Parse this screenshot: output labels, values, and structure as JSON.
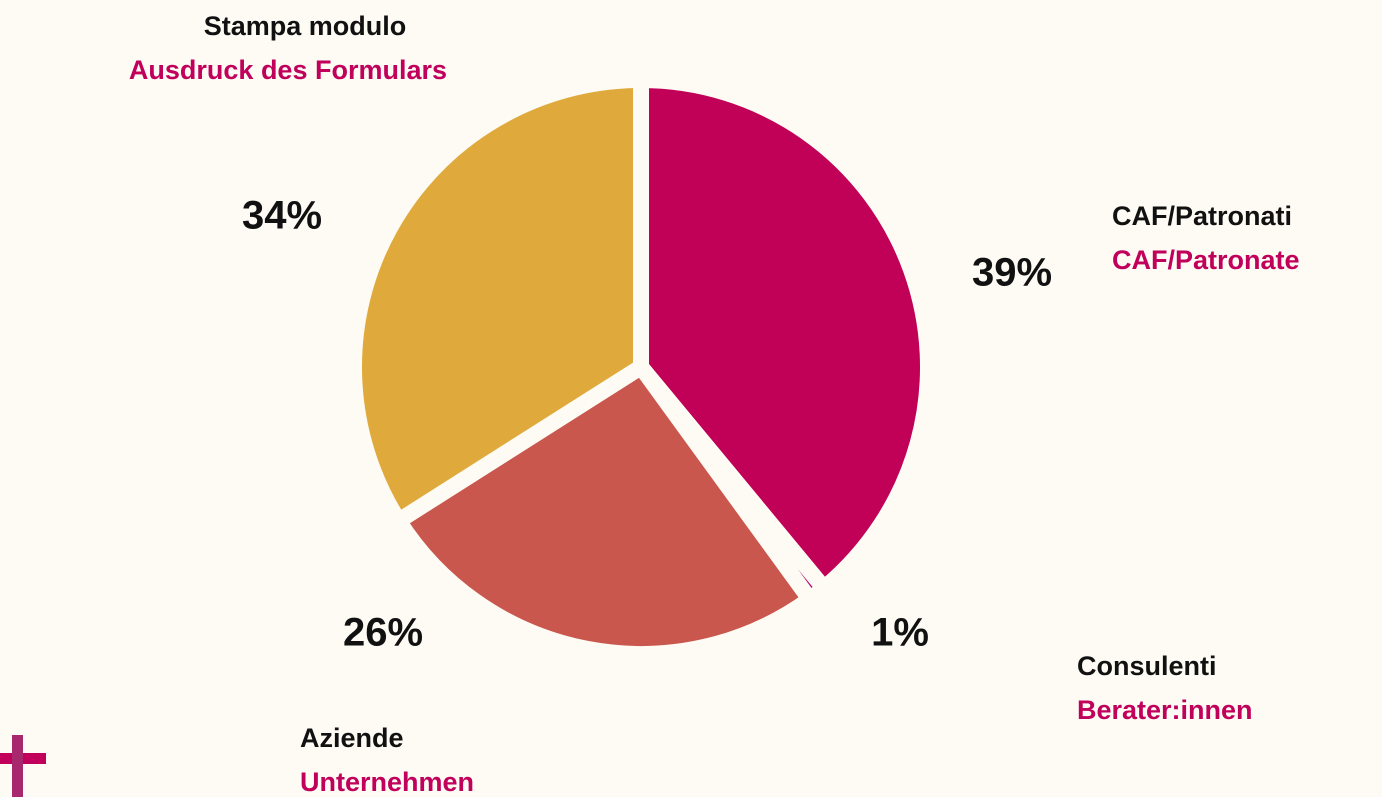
{
  "chart_data": {
    "type": "pie",
    "categories": [
      "CAF/Patronati",
      "Consulenti",
      "Aziende",
      "Stampa modulo"
    ],
    "categories_de": [
      "CAF/Patronate",
      "Berater:innen",
      "Unternehmen",
      "Ausdruck des Formulars"
    ],
    "values": [
      39,
      1,
      26,
      34
    ],
    "value_labels": [
      "39%",
      "1%",
      "26%",
      "34%"
    ],
    "colors": [
      "#c10058",
      "#b8006e",
      "#c9574d",
      "#dfaa3b"
    ],
    "start_angle": 0,
    "direction": "clockwise"
  }
}
